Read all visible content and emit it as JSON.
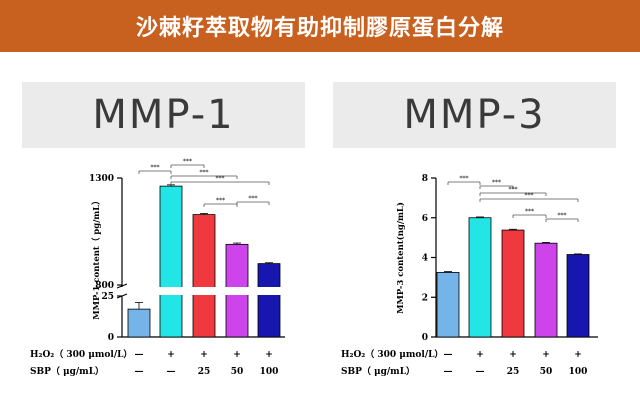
{
  "page": {
    "title": "沙棘籽萃取物有助抑制膠原蛋白分解"
  },
  "panels": [
    {
      "heading": "MMP-1"
    },
    {
      "heading": "MMP-3"
    }
  ],
  "treatment_rows": {
    "h2o2_label": "H₂O₂（ 300 μmol/L）",
    "sbp_label": "SBP（ μg/mL）",
    "h2o2_values": [
      "—",
      "+",
      "+",
      "+",
      "+"
    ],
    "sbp_values": [
      "—",
      "—",
      "25",
      "50",
      "100"
    ]
  },
  "significance_label": "***",
  "chart_data": [
    {
      "type": "bar",
      "title": "MMP-1",
      "ylabel": "MMP-1 content（ pg/mL）",
      "y_axis": "broken",
      "y_break": [
        25,
        800
      ],
      "yticks": [
        "0",
        "25",
        "800",
        "1300"
      ],
      "categories": [
        "1",
        "2",
        "3",
        "4",
        "5"
      ],
      "values": [
        17,
        1262,
        1129,
        990,
        900
      ],
      "errors": [
        4,
        6,
        5,
        6,
        4
      ],
      "colors": [
        "#74b4e8",
        "#22e5e5",
        "#f0393f",
        "#cc44ea",
        "#1717b0"
      ],
      "significance": [
        {
          "from": 0,
          "to": 1,
          "label": "***"
        },
        {
          "from": 1,
          "to": 2,
          "label": "***"
        },
        {
          "from": 1,
          "to": 3,
          "label": "***"
        },
        {
          "from": 1,
          "to": 4,
          "label": "***"
        },
        {
          "from": 2,
          "to": 3,
          "label": "***"
        },
        {
          "from": 3,
          "to": 4,
          "label": "***"
        }
      ]
    },
    {
      "type": "bar",
      "title": "MMP-3",
      "ylabel": "MMP-3 content(ng/mL)",
      "ylim": [
        0,
        8
      ],
      "yticks": [
        "0",
        "2",
        "4",
        "6",
        "8"
      ],
      "categories": [
        "1",
        "2",
        "3",
        "4",
        "5"
      ],
      "values": [
        3.25,
        6.0,
        5.38,
        4.72,
        4.15
      ],
      "errors": [
        0.04,
        0.04,
        0.04,
        0.04,
        0.03
      ],
      "colors": [
        "#74b4e8",
        "#22e5e5",
        "#f0393f",
        "#cc44ea",
        "#1717b0"
      ],
      "significance": [
        {
          "from": 0,
          "to": 1,
          "label": "***"
        },
        {
          "from": 1,
          "to": 2,
          "label": "***"
        },
        {
          "from": 1,
          "to": 3,
          "label": "***"
        },
        {
          "from": 1,
          "to": 4,
          "label": "***"
        },
        {
          "from": 2,
          "to": 3,
          "label": "***"
        },
        {
          "from": 3,
          "to": 4,
          "label": "***"
        }
      ]
    }
  ]
}
